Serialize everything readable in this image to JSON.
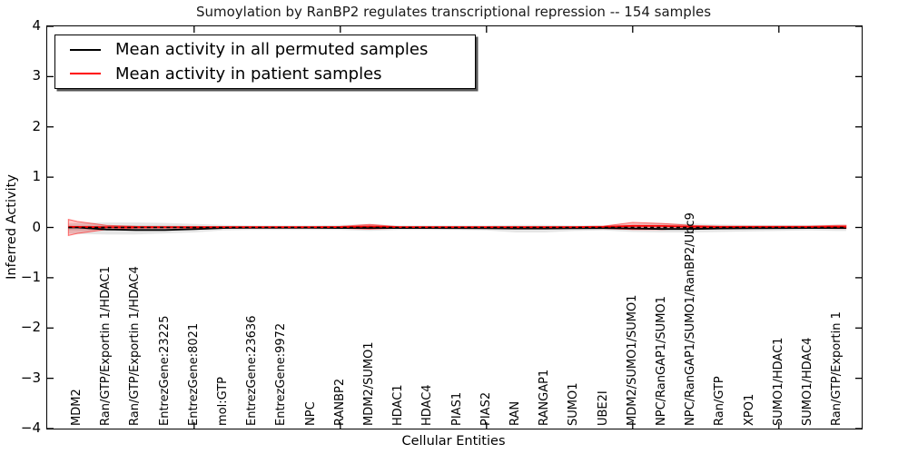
{
  "chart_data": {
    "type": "line",
    "title": "Sumoylation by RanBP2 regulates transcriptional repression -- 154 samples",
    "xlabel": "Cellular Entities",
    "ylabel": "Inferred Activity",
    "ylim": [
      -4,
      4
    ],
    "ytick_labels": [
      "4",
      "3",
      "2",
      "1",
      "0",
      "−1",
      "−2",
      "−3",
      "−4"
    ],
    "ytick_values": [
      4,
      3,
      2,
      1,
      0,
      -1,
      -2,
      -3,
      -4
    ],
    "xtick_index": [
      4,
      9,
      14,
      19,
      24
    ],
    "grid": "off",
    "legend_position": "upper-left",
    "legend": [
      {
        "label": "Mean activity in all permuted samples",
        "color": "#000000"
      },
      {
        "label": "Mean activity in patient samples",
        "color": "#ff0000"
      }
    ],
    "zero_line": {
      "y": 0,
      "style": "dashed",
      "color": "#000000"
    },
    "categories": [
      "MDM2",
      "Ran/GTP/Exportin 1/HDAC1",
      "Ran/GTP/Exportin 1/HDAC4",
      "EntrezGene:23225",
      "EntrezGene:8021",
      "mol:GTP",
      "EntrezGene:23636",
      "EntrezGene:9972",
      "NPC",
      "RANBP2",
      "MDM2/SUMO1",
      "HDAC1",
      "HDAC4",
      "PIAS1",
      "PIAS2",
      "RAN",
      "RANGAP1",
      "SUMO1",
      "UBE2I",
      "MDM2/SUMO1/SUMO1",
      "NPC/RanGAP1/SUMO1",
      "NPC/RanGAP1/SUMO1/RanBP2/Ubc9",
      "Ran/GTP",
      "XPO1",
      "SUMO1/HDAC1",
      "SUMO1/HDAC4",
      "Ran/GTP/Exportin 1"
    ],
    "x_index": [
      -0.3,
      0,
      1,
      2,
      3,
      4,
      5,
      6,
      7,
      8,
      9,
      10,
      11,
      12,
      13,
      14,
      15,
      16,
      17,
      18,
      19,
      20,
      21,
      22,
      23,
      24,
      25,
      26,
      26.3
    ],
    "series": [
      {
        "name": "Mean activity in all permuted samples",
        "color": "#000000",
        "values": [
          0,
          0,
          -0.04,
          -0.05,
          -0.05,
          -0.035,
          -0.01,
          -0.005,
          -0.005,
          -0.005,
          -0.01,
          -0.01,
          -0.01,
          -0.01,
          -0.012,
          -0.015,
          -0.02,
          -0.02,
          -0.015,
          -0.012,
          -0.02,
          -0.03,
          -0.03,
          -0.02,
          -0.015,
          -0.012,
          -0.01,
          -0.01,
          -0.01
        ]
      },
      {
        "name": "Mean activity in patient samples",
        "color": "#ff0000",
        "values": [
          0.012,
          0.01,
          0.006,
          0.005,
          0.005,
          0.005,
          0.005,
          0.005,
          0.005,
          0.005,
          0.008,
          0.02,
          0.008,
          0.006,
          0.006,
          0.006,
          0.006,
          0.006,
          0.006,
          0.01,
          0.03,
          0.028,
          0.015,
          0.01,
          0.01,
          0.01,
          0.01,
          0.014,
          0.015
        ]
      }
    ],
    "bands": [
      {
        "name": "permuted-range-outer",
        "color": "rgba(0,0,0,0.10)",
        "edge": "none",
        "low": [
          -0.12,
          -0.13,
          -0.14,
          -0.14,
          -0.12,
          -0.1,
          -0.06,
          -0.05,
          -0.05,
          -0.05,
          -0.05,
          -0.07,
          -0.05,
          -0.05,
          -0.05,
          -0.06,
          -0.1,
          -0.1,
          -0.07,
          -0.06,
          -0.09,
          -0.1,
          -0.1,
          -0.09,
          -0.08,
          -0.07,
          -0.06,
          -0.07,
          -0.07
        ],
        "high": [
          0.08,
          0.09,
          0.1,
          0.1,
          0.09,
          0.07,
          0.05,
          0.04,
          0.04,
          0.04,
          0.05,
          0.07,
          0.04,
          0.04,
          0.04,
          0.04,
          0.05,
          0.05,
          0.04,
          0.04,
          0.07,
          0.08,
          0.08,
          0.06,
          0.05,
          0.05,
          0.05,
          0.06,
          0.06
        ]
      },
      {
        "name": "permuted-range-inner",
        "color": "rgba(0,0,0,0.10)",
        "edge": "none",
        "low": [
          -0.054,
          -0.059,
          -0.063,
          -0.063,
          -0.054,
          -0.045,
          -0.027,
          -0.023,
          -0.023,
          -0.023,
          -0.023,
          -0.032,
          -0.023,
          -0.023,
          -0.023,
          -0.027,
          -0.045,
          -0.045,
          -0.032,
          -0.027,
          -0.041,
          -0.045,
          -0.045,
          -0.041,
          -0.036,
          -0.032,
          -0.027,
          -0.032,
          -0.032
        ],
        "high": [
          0.036,
          0.041,
          0.045,
          0.045,
          0.041,
          0.032,
          0.023,
          0.018,
          0.018,
          0.018,
          0.023,
          0.032,
          0.018,
          0.018,
          0.018,
          0.018,
          0.023,
          0.023,
          0.018,
          0.018,
          0.032,
          0.036,
          0.036,
          0.027,
          0.023,
          0.023,
          0.023,
          0.027,
          0.027
        ]
      },
      {
        "name": "patient-range",
        "color": "rgba(255,0,0,0.22)",
        "edge": "rgba(255,0,0,0.55)",
        "low": [
          -0.16,
          -0.12,
          -0.04,
          -0.015,
          -0.01,
          -0.01,
          -0.01,
          -0.01,
          -0.01,
          -0.01,
          -0.015,
          -0.03,
          -0.012,
          -0.012,
          -0.012,
          -0.012,
          -0.012,
          -0.012,
          -0.012,
          -0.02,
          -0.04,
          -0.04,
          -0.02,
          -0.015,
          -0.015,
          -0.015,
          -0.015,
          -0.02,
          -0.02
        ],
        "high": [
          0.16,
          0.12,
          0.04,
          0.02,
          0.015,
          0.015,
          0.015,
          0.015,
          0.015,
          0.015,
          0.02,
          0.06,
          0.015,
          0.015,
          0.015,
          0.015,
          0.015,
          0.015,
          0.015,
          0.025,
          0.1,
          0.08,
          0.04,
          0.025,
          0.025,
          0.025,
          0.025,
          0.04,
          0.04
        ]
      }
    ]
  }
}
